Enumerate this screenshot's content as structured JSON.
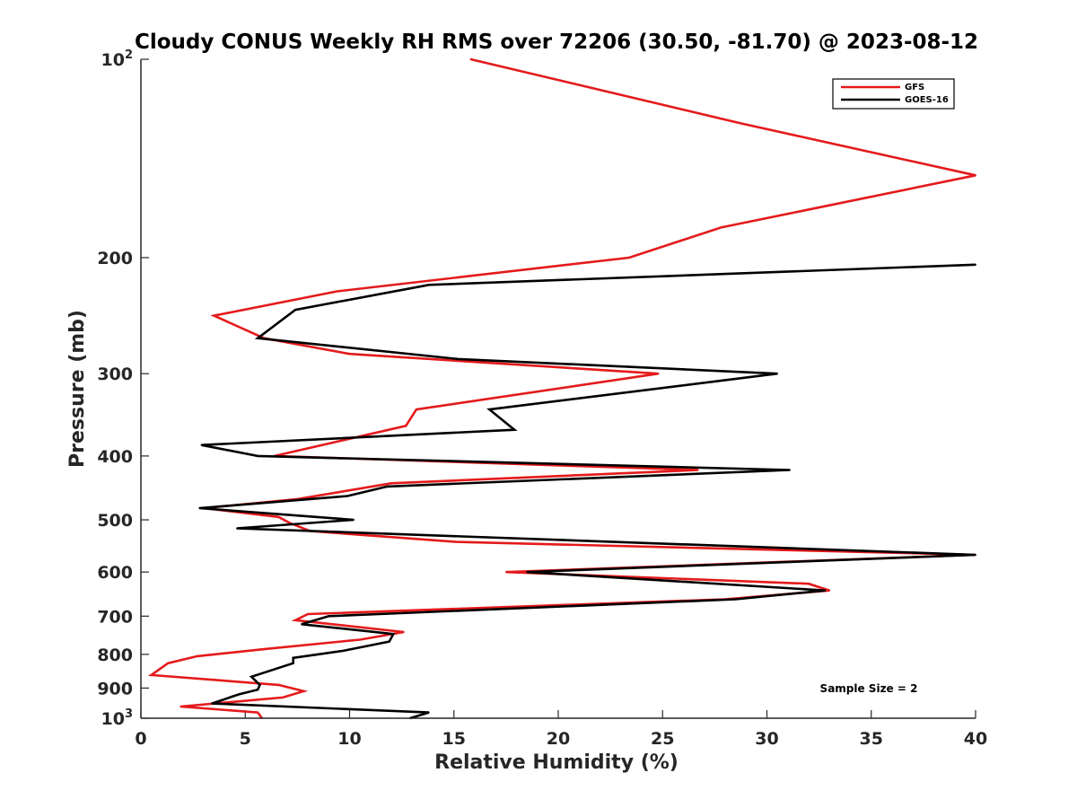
{
  "chart_data": {
    "type": "line",
    "title": "Cloudy CONUS Weekly RH RMS over 72206 (30.50, -81.70) @ 2023-08-12",
    "xlabel": "Relative Humidity (%)",
    "ylabel": "Pressure (mb)",
    "xlim": [
      0,
      40
    ],
    "ylim": [
      100,
      1000
    ],
    "yscale": "log",
    "y_reversed": true,
    "x_ticks": [
      0,
      5,
      10,
      15,
      20,
      25,
      30,
      35,
      40
    ],
    "y_ticks": [
      {
        "value": 100,
        "label": "10",
        "sup": "2"
      },
      {
        "value": 200,
        "label": "200"
      },
      {
        "value": 300,
        "label": "300"
      },
      {
        "value": 400,
        "label": "400"
      },
      {
        "value": 500,
        "label": "500"
      },
      {
        "value": 600,
        "label": "600"
      },
      {
        "value": 700,
        "label": "700"
      },
      {
        "value": 800,
        "label": "800"
      },
      {
        "value": 900,
        "label": "900"
      },
      {
        "value": 1000,
        "label": "10",
        "sup": "3"
      }
    ],
    "legend_position": "top-right",
    "annotation": "Sample Size = 2",
    "series": [
      {
        "name": "GFS",
        "color": "#e41a1c",
        "points": [
          [
            15.8,
            100
          ],
          [
            28.7,
            125
          ],
          [
            40.0,
            150
          ],
          [
            27.8,
            180
          ],
          [
            23.4,
            200
          ],
          [
            9.4,
            225
          ],
          [
            3.5,
            245
          ],
          [
            5.9,
            265
          ],
          [
            10.0,
            280
          ],
          [
            24.8,
            300
          ],
          [
            13.2,
            340
          ],
          [
            12.7,
            360
          ],
          [
            6.4,
            400
          ],
          [
            26.7,
            420
          ],
          [
            12.0,
            440
          ],
          [
            7.5,
            465
          ],
          [
            3.0,
            480
          ],
          [
            6.6,
            495
          ],
          [
            7.1,
            505
          ],
          [
            8.1,
            520
          ],
          [
            15.1,
            540
          ],
          [
            40.0,
            565
          ],
          [
            17.5,
            600
          ],
          [
            32.0,
            625
          ],
          [
            33.0,
            640
          ],
          [
            28.0,
            660
          ],
          [
            8.0,
            695
          ],
          [
            7.4,
            710
          ],
          [
            12.6,
            740
          ],
          [
            10.5,
            760
          ],
          [
            6.0,
            785
          ],
          [
            2.7,
            805
          ],
          [
            1.3,
            825
          ],
          [
            0.5,
            860
          ],
          [
            6.6,
            890
          ],
          [
            7.8,
            910
          ],
          [
            6.8,
            930
          ],
          [
            1.9,
            960
          ],
          [
            5.6,
            980
          ],
          [
            5.8,
            1000
          ]
        ]
      },
      {
        "name": "GOES-16",
        "color": "#000000",
        "points": [
          [
            40.0,
            205
          ],
          [
            13.8,
            220
          ],
          [
            7.4,
            240
          ],
          [
            5.6,
            265
          ],
          [
            15.2,
            285
          ],
          [
            30.5,
            300
          ],
          [
            16.7,
            340
          ],
          [
            17.9,
            365
          ],
          [
            2.9,
            385
          ],
          [
            5.6,
            400
          ],
          [
            31.1,
            420
          ],
          [
            11.8,
            445
          ],
          [
            9.9,
            460
          ],
          [
            2.8,
            480
          ],
          [
            10.2,
            500
          ],
          [
            4.6,
            515
          ],
          [
            40.0,
            565
          ],
          [
            18.5,
            600
          ],
          [
            32.8,
            640
          ],
          [
            28.5,
            660
          ],
          [
            9.0,
            700
          ],
          [
            7.7,
            720
          ],
          [
            12.1,
            745
          ],
          [
            11.9,
            765
          ],
          [
            9.7,
            790
          ],
          [
            7.3,
            810
          ],
          [
            7.3,
            825
          ],
          [
            5.3,
            865
          ],
          [
            5.7,
            890
          ],
          [
            5.6,
            905
          ],
          [
            4.7,
            920
          ],
          [
            3.4,
            950
          ],
          [
            13.8,
            980
          ],
          [
            12.9,
            1000
          ]
        ]
      }
    ]
  }
}
